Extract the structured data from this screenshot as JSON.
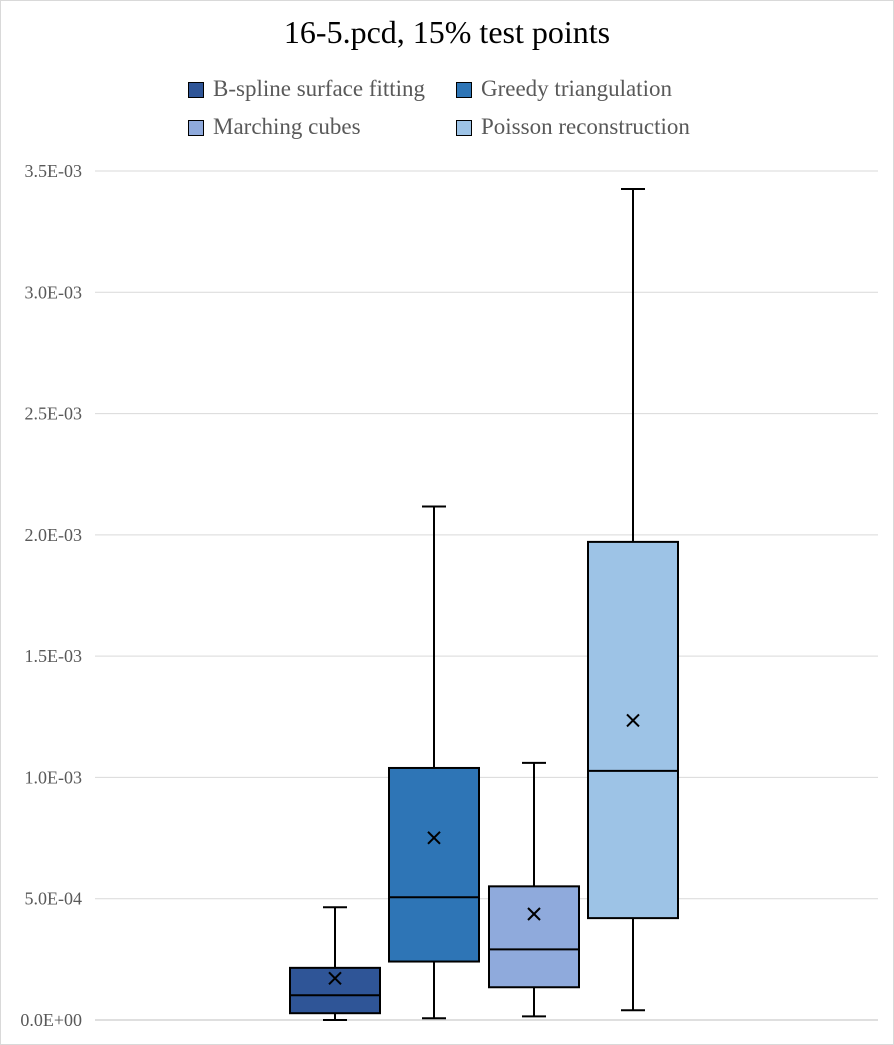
{
  "chart_data": {
    "type": "boxplot",
    "title": "16-5.pcd, 15% test points",
    "xlabel": "",
    "ylabel": "",
    "ylim": [
      0,
      0.0035
    ],
    "yticks": [
      {
        "value": 0,
        "label": "0.0E+00"
      },
      {
        "value": 0.0005,
        "label": "5.0E-04"
      },
      {
        "value": 0.001,
        "label": "1.0E-03"
      },
      {
        "value": 0.0015,
        "label": "1.5E-03"
      },
      {
        "value": 0.002,
        "label": "2.0E-03"
      },
      {
        "value": 0.0025,
        "label": "2.5E-03"
      },
      {
        "value": 0.003,
        "label": "3.0E-03"
      },
      {
        "value": 0.0035,
        "label": "3.5E-03"
      }
    ],
    "grid": true,
    "legend_position": "top",
    "series": [
      {
        "name": "B-spline surface fitting",
        "color": "#2F5597",
        "min": 0.0,
        "q1": 2.8e-05,
        "median": 0.000102,
        "q3": 0.000215,
        "max": 0.000465,
        "mean": 0.000172
      },
      {
        "name": "Greedy triangulation",
        "color": "#2E75B6",
        "min": 7e-06,
        "q1": 0.000241,
        "median": 0.000506,
        "q3": 0.001039,
        "max": 0.002117,
        "mean": 0.000751
      },
      {
        "name": "Marching cubes",
        "color": "#8FAADC",
        "min": 1.5e-05,
        "q1": 0.000135,
        "median": 0.000291,
        "q3": 0.000551,
        "max": 0.00106,
        "mean": 0.000437
      },
      {
        "name": "Poisson reconstruction",
        "color": "#9DC3E6",
        "min": 4e-05,
        "q1": 0.00042,
        "median": 0.001027,
        "q3": 0.001971,
        "max": 0.003426,
        "mean": 0.001235
      }
    ]
  }
}
